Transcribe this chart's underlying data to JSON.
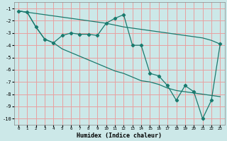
{
  "title": "",
  "xlabel": "Humidex (Indice chaleur)",
  "bg_color": "#cce8e8",
  "grid_color": "#e8a0a0",
  "line_color": "#1a7a6e",
  "xlim": [
    -0.5,
    23.5
  ],
  "ylim": [
    -10.5,
    -0.5
  ],
  "yticks": [
    -10,
    -9,
    -8,
    -7,
    -6,
    -5,
    -4,
    -3,
    -2,
    -1
  ],
  "xticks": [
    0,
    1,
    2,
    3,
    4,
    5,
    6,
    7,
    8,
    9,
    10,
    11,
    12,
    13,
    14,
    15,
    16,
    17,
    18,
    19,
    20,
    21,
    22,
    23
  ],
  "s1x": [
    0,
    1,
    2,
    3,
    4,
    5,
    6,
    7,
    8,
    9,
    10,
    11,
    12,
    13,
    14,
    15,
    16,
    17,
    18,
    19,
    20,
    21,
    22,
    23
  ],
  "s1y": [
    -1.2,
    -1.3,
    -1.4,
    -1.5,
    -1.6,
    -1.7,
    -1.8,
    -1.9,
    -2.0,
    -2.1,
    -2.2,
    -2.35,
    -2.5,
    -2.6,
    -2.7,
    -2.8,
    -2.9,
    -3.0,
    -3.1,
    -3.2,
    -3.3,
    -3.4,
    -3.6,
    -3.9
  ],
  "s2x": [
    0,
    1,
    2,
    3,
    4,
    5,
    6,
    7,
    8,
    9,
    10,
    11,
    12,
    13,
    14,
    15,
    16,
    17,
    18,
    19,
    20,
    21,
    22,
    23
  ],
  "s2y": [
    -1.2,
    -1.3,
    -2.5,
    -3.5,
    -3.8,
    -3.2,
    -3.0,
    -3.1,
    -3.1,
    -3.2,
    -2.2,
    -1.8,
    -1.5,
    -4.0,
    -4.0,
    -6.3,
    -6.5,
    -7.3,
    -8.5,
    -7.3,
    -7.8,
    -10.0,
    -8.5,
    -3.9
  ],
  "s3x": [
    0,
    1,
    2,
    3,
    4,
    5,
    6,
    7,
    8,
    9,
    10,
    11,
    12,
    13,
    14,
    15,
    16,
    17,
    18,
    19,
    20,
    21,
    22,
    23
  ],
  "s3y": [
    -1.2,
    -1.3,
    -2.5,
    -3.5,
    -3.8,
    -4.3,
    -4.6,
    -4.9,
    -5.2,
    -5.5,
    -5.8,
    -6.1,
    -6.3,
    -6.6,
    -6.9,
    -7.0,
    -7.2,
    -7.5,
    -7.7,
    -7.8,
    -7.9,
    -8.0,
    -8.1,
    -8.2
  ]
}
